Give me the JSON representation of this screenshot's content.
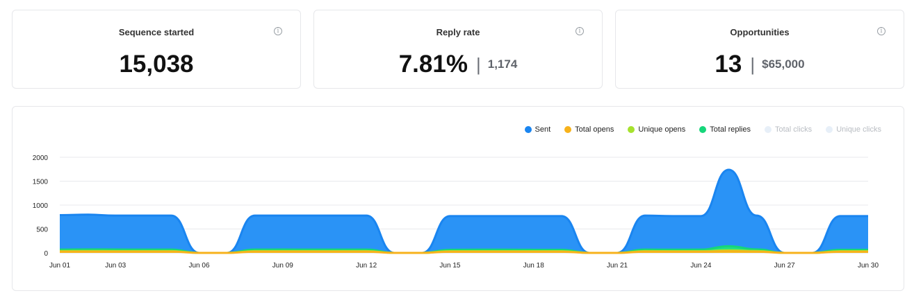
{
  "cards": [
    {
      "title": "Sequence started",
      "value": "15,038",
      "sub": ""
    },
    {
      "title": "Reply rate",
      "value": "7.81%",
      "sub": "1,174"
    },
    {
      "title": "Opportunities",
      "value": "13",
      "sub": "$65,000"
    }
  ],
  "info_icon": "info-icon",
  "legend": [
    {
      "name": "Sent",
      "color": "#1a85f0",
      "active": true
    },
    {
      "name": "Total opens",
      "color": "#f7b21b",
      "active": true
    },
    {
      "name": "Unique opens",
      "color": "#a6e22e",
      "active": true
    },
    {
      "name": "Total replies",
      "color": "#16d67a",
      "active": true
    },
    {
      "name": "Total clicks",
      "color": "#e7eff8",
      "active": false
    },
    {
      "name": "Unique clicks",
      "color": "#e7eff8",
      "active": false
    }
  ],
  "chart_data": {
    "type": "area",
    "x": [
      "Jun 01",
      "Jun 02",
      "Jun 03",
      "Jun 04",
      "Jun 05",
      "Jun 06",
      "Jun 07",
      "Jun 08",
      "Jun 09",
      "Jun 10",
      "Jun 11",
      "Jun 12",
      "Jun 13",
      "Jun 14",
      "Jun 15",
      "Jun 16",
      "Jun 17",
      "Jun 18",
      "Jun 19",
      "Jun 20",
      "Jun 21",
      "Jun 22",
      "Jun 23",
      "Jun 24",
      "Jun 25",
      "Jun 26",
      "Jun 27",
      "Jun 28",
      "Jun 29",
      "Jun 30"
    ],
    "x_tick_labels": [
      "Jun 01",
      "Jun 03",
      "Jun 06",
      "Jun 09",
      "Jun 12",
      "Jun 15",
      "Jun 18",
      "Jun 21",
      "Jun 24",
      "Jun 27",
      "Jun 30"
    ],
    "y_ticks": [
      0,
      500,
      1000,
      1500,
      2000
    ],
    "ylim": [
      0,
      2000
    ],
    "grid": true,
    "legend_position": "top-right",
    "series": [
      {
        "name": "Sent",
        "values": [
          790,
          800,
          780,
          780,
          780,
          0,
          0,
          780,
          780,
          780,
          780,
          780,
          0,
          0,
          770,
          770,
          770,
          770,
          770,
          0,
          0,
          780,
          770,
          770,
          1740,
          780,
          0,
          0,
          770,
          770
        ]
      },
      {
        "name": "Total replies",
        "values": [
          70,
          75,
          72,
          70,
          70,
          0,
          0,
          70,
          72,
          70,
          70,
          70,
          0,
          0,
          65,
          68,
          68,
          66,
          66,
          0,
          0,
          70,
          68,
          70,
          140,
          75,
          0,
          0,
          65,
          65
        ]
      },
      {
        "name": "Unique opens",
        "values": [
          38,
          40,
          38,
          38,
          38,
          0,
          0,
          38,
          38,
          38,
          38,
          38,
          0,
          0,
          36,
          36,
          36,
          36,
          36,
          0,
          0,
          38,
          36,
          36,
          55,
          40,
          0,
          0,
          36,
          36
        ]
      },
      {
        "name": "Total opens",
        "values": [
          25,
          26,
          25,
          25,
          25,
          0,
          0,
          25,
          25,
          25,
          25,
          25,
          0,
          0,
          24,
          24,
          24,
          24,
          24,
          0,
          0,
          25,
          24,
          24,
          35,
          26,
          0,
          0,
          24,
          24
        ]
      }
    ]
  }
}
